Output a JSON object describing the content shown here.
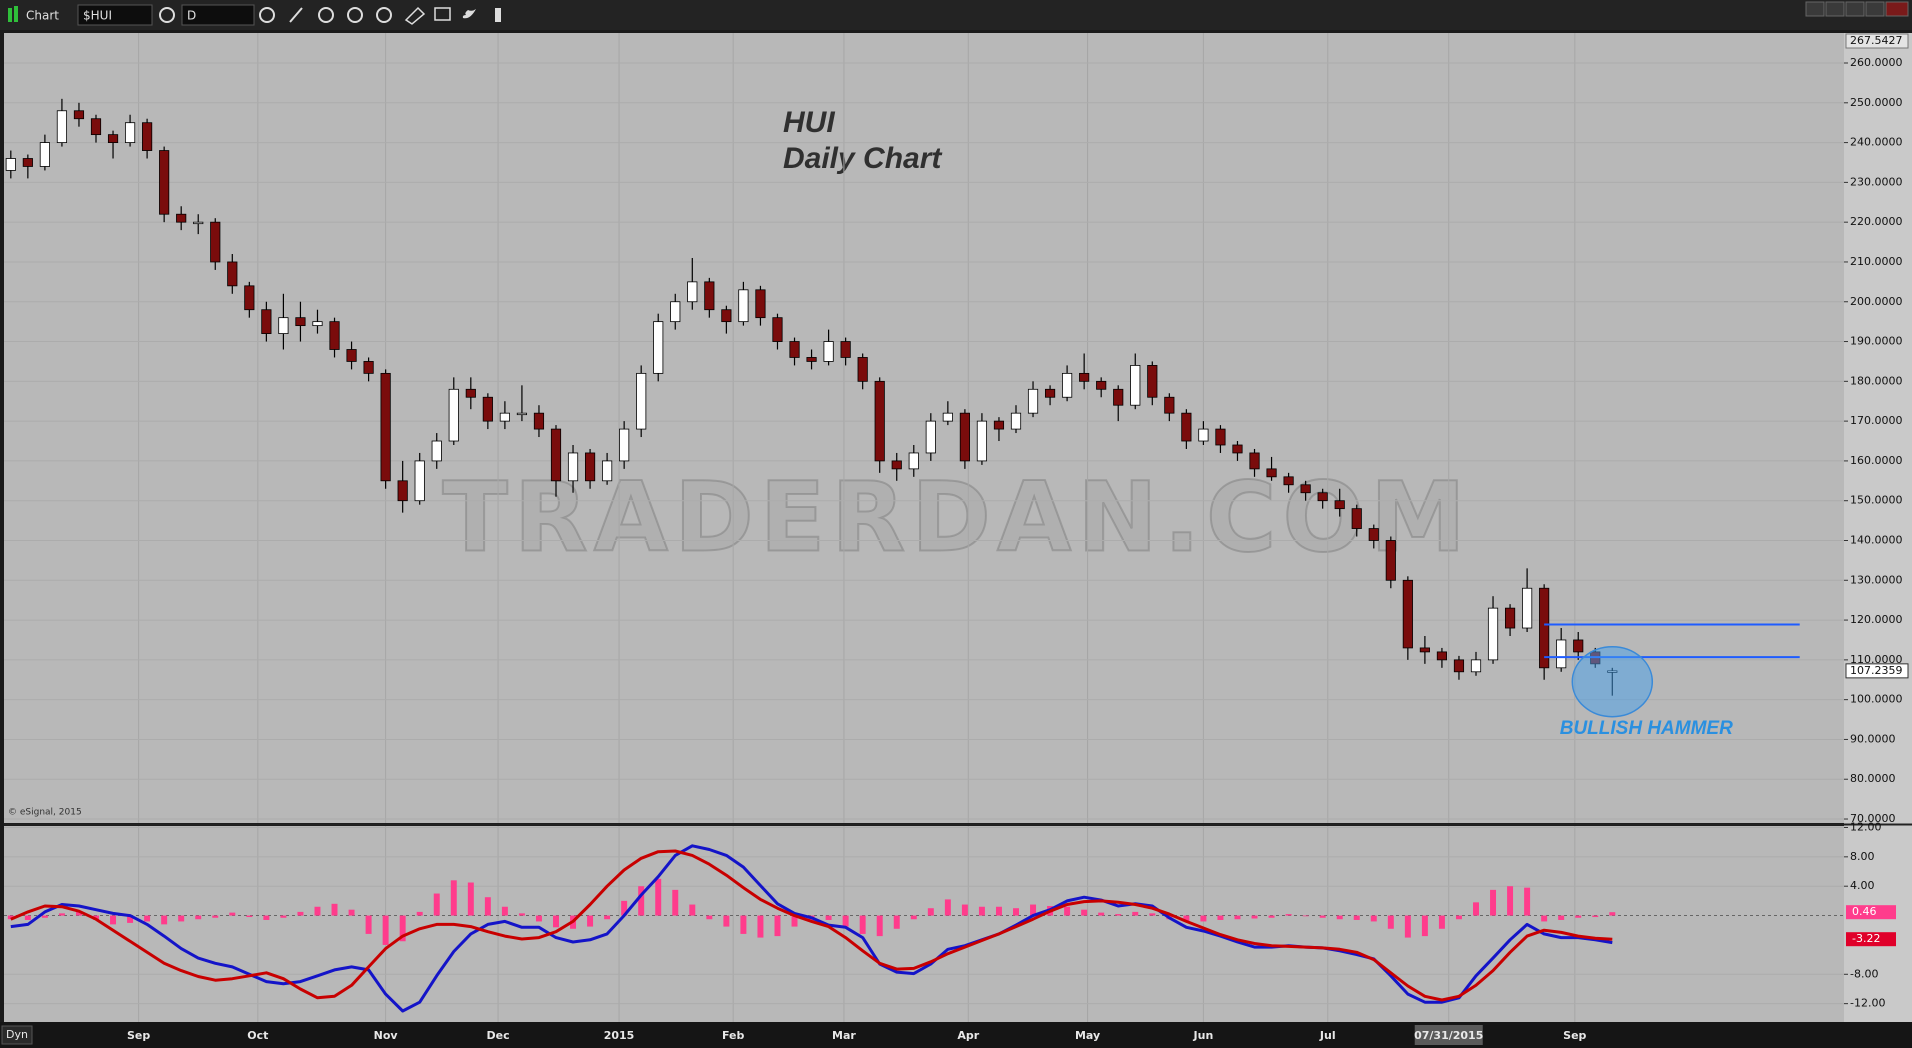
{
  "toolbar": {
    "title": "Chart",
    "symbol": "$HUI",
    "interval": "D"
  },
  "footer": {
    "mode": "Dyn"
  },
  "copyright": "© eSignal, 2015",
  "chart_data": [
    {
      "type": "candlestick",
      "title": "HUI",
      "subtitle": "Daily Chart",
      "watermark": "TRADERDAN.COM",
      "annotation": "BULLISH HAMMER",
      "up_color": "#ffffff",
      "down_color": "#7a0c0c",
      "wick_color": "#000000",
      "grid": true,
      "xlim": [
        -0.4,
        107.6
      ],
      "xticks": [
        {
          "value": 7.5,
          "label": "Sep"
        },
        {
          "value": 14.5,
          "label": "Oct"
        },
        {
          "value": 22,
          "label": "Nov"
        },
        {
          "value": 28.6,
          "label": "Dec"
        },
        {
          "value": 35.7,
          "label": "2015"
        },
        {
          "value": 42.4,
          "label": "Feb"
        },
        {
          "value": 48.9,
          "label": "Mar"
        },
        {
          "value": 56.2,
          "label": "Apr"
        },
        {
          "value": 63.2,
          "label": "May"
        },
        {
          "value": 70,
          "label": "Jun"
        },
        {
          "value": 77.3,
          "label": "Jul"
        },
        {
          "value": 84.4,
          "label": "07/31/2015"
        },
        {
          "value": 91.8,
          "label": "Sep"
        }
      ],
      "highlight_xtick": 11,
      "ylim": [
        69,
        267.5427
      ],
      "yticks": [
        {
          "value": 70,
          "label": "70.0000"
        },
        {
          "value": 80,
          "label": "80.0000"
        },
        {
          "value": 90,
          "label": "90.0000"
        },
        {
          "value": 100,
          "label": "100.0000"
        },
        {
          "value": 110,
          "label": "110.0000"
        },
        {
          "value": 120,
          "label": "120.0000"
        },
        {
          "value": 130,
          "label": "130.0000"
        },
        {
          "value": 140,
          "label": "140.0000"
        },
        {
          "value": 150,
          "label": "150.0000"
        },
        {
          "value": 160,
          "label": "160.0000"
        },
        {
          "value": 170,
          "label": "170.0000"
        },
        {
          "value": 180,
          "label": "180.0000"
        },
        {
          "value": 190,
          "label": "190.0000"
        },
        {
          "value": 200,
          "label": "200.0000"
        },
        {
          "value": 210,
          "label": "210.0000"
        },
        {
          "value": 220,
          "label": "220.0000"
        },
        {
          "value": 230,
          "label": "230.0000"
        },
        {
          "value": 240,
          "label": "240.0000"
        },
        {
          "value": 250,
          "label": "250.0000"
        },
        {
          "value": 260,
          "label": "260.0000"
        }
      ],
      "lines": [
        118.9,
        110.7
      ],
      "line_color": "#1e5cff",
      "open": [
        233,
        236,
        234,
        240,
        248,
        246,
        242,
        240,
        245,
        238,
        222,
        220,
        220,
        210,
        204,
        198,
        192,
        196,
        194,
        195,
        188,
        185,
        182,
        155,
        150,
        160,
        165,
        178,
        176,
        170,
        172,
        172,
        168,
        155,
        162,
        155,
        160,
        168,
        182,
        195,
        200,
        205,
        198,
        195,
        203,
        196,
        190,
        186,
        185,
        190,
        186,
        180,
        160,
        158,
        162,
        170,
        172,
        160,
        170,
        168,
        172,
        178,
        176,
        182,
        180,
        178,
        174,
        184,
        176,
        172,
        165,
        168,
        164,
        162,
        158,
        156,
        154,
        152,
        150,
        148,
        143,
        140,
        130,
        113,
        112,
        110,
        107,
        110,
        123,
        118,
        128,
        108,
        115,
        112,
        107
      ],
      "high": [
        238,
        237,
        242,
        251,
        250,
        247,
        243,
        247,
        246,
        239,
        224,
        222,
        221,
        212,
        205,
        200,
        202,
        200,
        198,
        196,
        190,
        186,
        183,
        160,
        162,
        167,
        181,
        181,
        177,
        175,
        179,
        174,
        169,
        164,
        163,
        162,
        170,
        184,
        197,
        202,
        211,
        206,
        199,
        205,
        204,
        197,
        191,
        188,
        193,
        191,
        187,
        181,
        162,
        164,
        172,
        175,
        173,
        172,
        171,
        174,
        180,
        179,
        184,
        187,
        181,
        179,
        187,
        185,
        177,
        173,
        170,
        169,
        165,
        163,
        161,
        157,
        155,
        153,
        153,
        149,
        144,
        141,
        131,
        116,
        113,
        111,
        112,
        126,
        124,
        133,
        129,
        118,
        117,
        113,
        108
      ],
      "low": [
        231,
        231,
        233,
        239,
        244,
        240,
        236,
        239,
        236,
        220,
        218,
        217,
        208,
        202,
        196,
        190,
        188,
        190,
        192,
        186,
        183,
        180,
        153,
        147,
        149,
        158,
        164,
        173,
        168,
        168,
        170,
        166,
        151,
        152,
        153,
        154,
        158,
        166,
        180,
        193,
        198,
        196,
        192,
        194,
        194,
        188,
        184,
        183,
        184,
        184,
        178,
        157,
        155,
        156,
        160,
        169,
        158,
        159,
        165,
        167,
        171,
        174,
        175,
        178,
        176,
        170,
        173,
        174,
        170,
        163,
        164,
        162,
        160,
        156,
        155,
        152,
        150,
        148,
        146,
        141,
        138,
        128,
        110,
        109,
        108,
        105,
        106,
        109,
        116,
        117,
        105,
        107,
        110,
        108,
        101
      ],
      "close": [
        236,
        234,
        240,
        248,
        246,
        242,
        240,
        245,
        238,
        222,
        220,
        220,
        210,
        204,
        198,
        192,
        196,
        194,
        195,
        188,
        185,
        182,
        155,
        150,
        160,
        165,
        178,
        176,
        170,
        172,
        172,
        168,
        155,
        162,
        155,
        160,
        168,
        182,
        195,
        200,
        205,
        198,
        195,
        203,
        196,
        190,
        186,
        185,
        190,
        186,
        180,
        160,
        158,
        162,
        170,
        172,
        160,
        170,
        168,
        172,
        178,
        176,
        182,
        180,
        178,
        174,
        184,
        176,
        172,
        165,
        168,
        164,
        162,
        158,
        156,
        154,
        152,
        150,
        148,
        143,
        140,
        130,
        113,
        112,
        110,
        107,
        110,
        123,
        118,
        128,
        108,
        115,
        112,
        109,
        107.2359
      ]
    },
    {
      "type": "macd",
      "grid": true,
      "ylim": [
        -14.5,
        12.2
      ],
      "yticks": [
        {
          "value": 12,
          "label": "12.00"
        },
        {
          "value": 8,
          "label": "8.00"
        },
        {
          "value": 4,
          "label": "4.00"
        },
        {
          "value": -8,
          "label": "-8.00"
        },
        {
          "value": -12,
          "label": "-12.00"
        }
      ],
      "series": [
        {
          "color": "#1414c8",
          "kind": "line",
          "values": [
            -1.5,
            -1.2,
            0.5,
            1.5,
            1.3,
            0.8,
            0.3,
            0,
            -1.2,
            -2.8,
            -4.5,
            -5.8,
            -6.5,
            -7,
            -8,
            -9,
            -9.3,
            -9,
            -8.2,
            -7.4,
            -7,
            -7.4,
            -10.7,
            -13,
            -11.8,
            -8.2,
            -4.9,
            -2.5,
            -1.2,
            -0.8,
            -1.6,
            -1.6,
            -3,
            -3.6,
            -3.3,
            -2.5,
            0,
            2.8,
            5.3,
            8.2,
            9.5,
            9,
            8.2,
            6.6,
            4.1,
            1.6,
            0.3,
            -0.3,
            -1.3,
            -1.6,
            -3,
            -6.6,
            -7.7,
            -7.9,
            -6.6,
            -4.6,
            -4.1,
            -3.3,
            -2.5,
            -1.3,
            0,
            0.8,
            2,
            2.5,
            2.1,
            1.3,
            1.6,
            1.3,
            -0.3,
            -1.6,
            -2.1,
            -2.8,
            -3.6,
            -4.3,
            -4.3,
            -4.1,
            -4.3,
            -4.4,
            -4.8,
            -5.3,
            -5.9,
            -8.2,
            -10.7,
            -11.8,
            -11.8,
            -11.2,
            -8.2,
            -5.8,
            -3.3,
            -1.2,
            -2.5,
            -3,
            -3,
            -3.3,
            -3.68
          ]
        },
        {
          "color": "#c80000",
          "kind": "line",
          "values": [
            -0.5,
            0.5,
            1.3,
            1.2,
            0.6,
            -0.5,
            -2,
            -3.5,
            -5,
            -6.5,
            -7.5,
            -8.3,
            -8.8,
            -8.6,
            -8.2,
            -7.8,
            -8.6,
            -10,
            -11.2,
            -11,
            -9.5,
            -7,
            -4.5,
            -2.8,
            -1.8,
            -1.2,
            -1.2,
            -1.5,
            -2.2,
            -2.8,
            -3.2,
            -3,
            -2.2,
            -0.8,
            1.5,
            4,
            6.2,
            7.8,
            8.7,
            8.8,
            8.2,
            7,
            5.5,
            3.8,
            2.2,
            1,
            0,
            -0.8,
            -1.5,
            -3,
            -4.8,
            -6.5,
            -7.3,
            -7.2,
            -6.3,
            -5.2,
            -4.3,
            -3.4,
            -2.5,
            -1.5,
            -0.5,
            0.6,
            1.5,
            1.9,
            2,
            1.8,
            1.5,
            1,
            0.2,
            -0.8,
            -1.7,
            -2.6,
            -3.3,
            -3.8,
            -4.1,
            -4.2,
            -4.3,
            -4.4,
            -4.6,
            -5,
            -6,
            -7.8,
            -9.6,
            -11,
            -11.5,
            -11,
            -9.5,
            -7.5,
            -5,
            -2.8,
            -2,
            -2.3,
            -2.8,
            -3.1,
            -3.22
          ]
        },
        {
          "color": "#ff3c8c",
          "kind": "histogram",
          "values": [
            -0.5,
            -0.6,
            -0.3,
            0.3,
            0.5,
            -0.6,
            -1.2,
            -1,
            -0.8,
            -1.2,
            -0.8,
            -0.5,
            -0.3,
            0.4,
            -0.2,
            -0.6,
            -0.3,
            0.5,
            1.2,
            1.6,
            0.8,
            -2.5,
            -4,
            -3.5,
            0.5,
            3,
            4.8,
            4.5,
            2.5,
            1.2,
            0.3,
            -0.8,
            -1.6,
            -1.8,
            -1.5,
            -0.5,
            2,
            4,
            5,
            3.5,
            1.5,
            -0.5,
            -1.5,
            -2.5,
            -3,
            -2.8,
            -1.5,
            -0.8,
            -0.6,
            -1.5,
            -2.5,
            -2.8,
            -1.8,
            -0.5,
            1,
            2.2,
            1.5,
            1.2,
            1.2,
            1,
            1.5,
            1.3,
            1.2,
            0.8,
            0.4,
            0.2,
            0.5,
            0.3,
            -0.5,
            -0.8,
            -0.8,
            -0.6,
            -0.5,
            -0.4,
            -0.3,
            0.2,
            -0.1,
            -0.3,
            -0.5,
            -0.6,
            -0.8,
            -1.8,
            -3,
            -2.8,
            -1.8,
            -0.5,
            1.8,
            3.5,
            4,
            3.8,
            -0.8,
            -0.6,
            -0.3,
            -0.2,
            0.46
          ]
        }
      ]
    }
  ]
}
